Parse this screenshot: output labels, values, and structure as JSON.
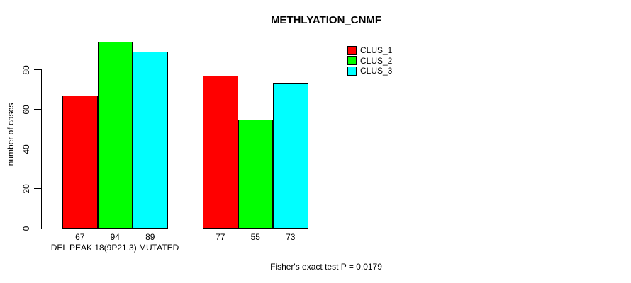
{
  "chart_data": {
    "type": "bar",
    "title": "METHLYATION_CNMF",
    "ylabel": "number of cases",
    "group_labels": [
      "DEL PEAK 18(9P21.3) MUTATED",
      ""
    ],
    "series": [
      {
        "name": "CLUS_1",
        "color": "#FF0000",
        "values": [
          67,
          77
        ]
      },
      {
        "name": "CLUS_2",
        "color": "#00FF00",
        "values": [
          94,
          55
        ]
      },
      {
        "name": "CLUS_3",
        "color": "#00FFFF",
        "values": [
          89,
          73
        ]
      }
    ],
    "yticks": [
      0,
      20,
      40,
      60,
      80
    ],
    "ylim": [
      0,
      98
    ],
    "grid": false,
    "show_bar_value_labels": true,
    "legend_position": "right-of-plot-top",
    "annotation": "Fisher's exact test P = 0.0179"
  },
  "colors": {
    "background": "#FFFFFF",
    "text": "#000000",
    "axis": "#000000",
    "bar_border": "#000000"
  }
}
